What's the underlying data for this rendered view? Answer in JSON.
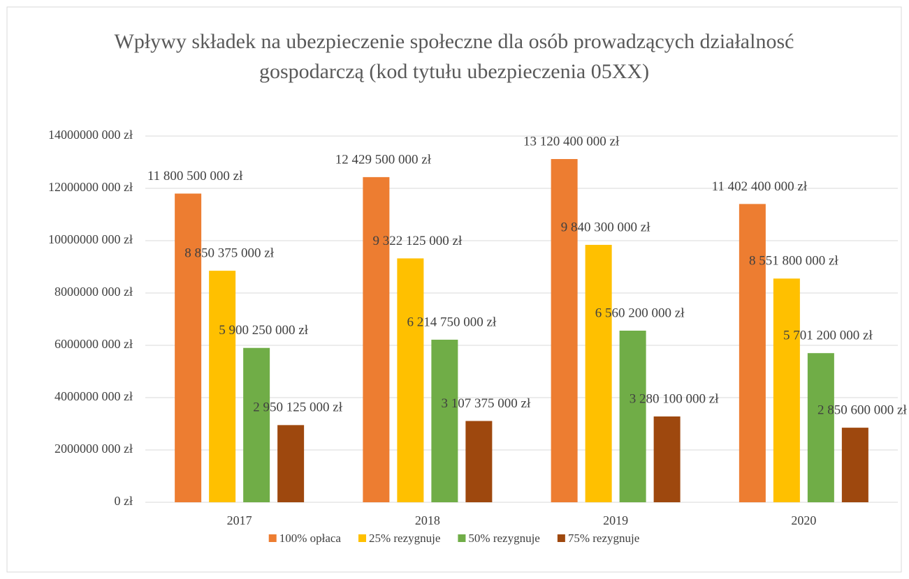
{
  "chart_data": {
    "type": "bar",
    "title": "Wpływy składek na ubezpieczenie społeczne dla osób prowadzących działalnosć gospodarczą (kod tytułu ubezpieczenia 05XX)",
    "categories": [
      "2017",
      "2018",
      "2019",
      "2020"
    ],
    "series": [
      {
        "name": "100% opłaca",
        "color": "#ED7D31",
        "values": [
          11800500000,
          12429500000,
          13120400000,
          11402400000
        ],
        "value_labels": [
          "11 800 500 000 zł",
          "12 429 500 000 zł",
          "13 120 400 000 zł",
          "11 402 400 000 zł"
        ]
      },
      {
        "name": "25% rezygnuje",
        "color": "#FFC000",
        "values": [
          8850375000,
          9322125000,
          9840300000,
          8551800000
        ],
        "value_labels": [
          "8 850 375 000 zł",
          "9 322 125 000 zł",
          "9 840 300 000 zł",
          "8 551 800 000 zł"
        ]
      },
      {
        "name": "50% rezygnuje",
        "color": "#70AD47",
        "values": [
          5900250000,
          6214750000,
          6560200000,
          5701200000
        ],
        "value_labels": [
          "5 900 250 000 zł",
          "6 214 750 000 zł",
          "6 560 200 000 zł",
          "5 701 200 000 zł"
        ]
      },
      {
        "name": "75% rezygnuje",
        "color": "#9E480E",
        "values": [
          2950125000,
          3107375000,
          3280100000,
          2850600000
        ],
        "value_labels": [
          "2 950 125 000 zł",
          "3 107 375 000 zł",
          "3 280 100 000 zł",
          "2 850 600 000 zł"
        ]
      }
    ],
    "ylim": [
      0,
      14000000000
    ],
    "yticks": [
      {
        "value": 0,
        "label": "0 zł"
      },
      {
        "value": 2000000000,
        "label": "2000000 000 zł"
      },
      {
        "value": 4000000000,
        "label": "4000000 000 zł"
      },
      {
        "value": 6000000000,
        "label": "6000000 000 zł"
      },
      {
        "value": 8000000000,
        "label": "8000000 000 zł"
      },
      {
        "value": 10000000000,
        "label": "10000000 000 zł"
      },
      {
        "value": 12000000000,
        "label": "12000000 000 zł"
      },
      {
        "value": 14000000000,
        "label": "14000000 000 zł"
      }
    ],
    "grid": true,
    "legend": "bottom"
  }
}
